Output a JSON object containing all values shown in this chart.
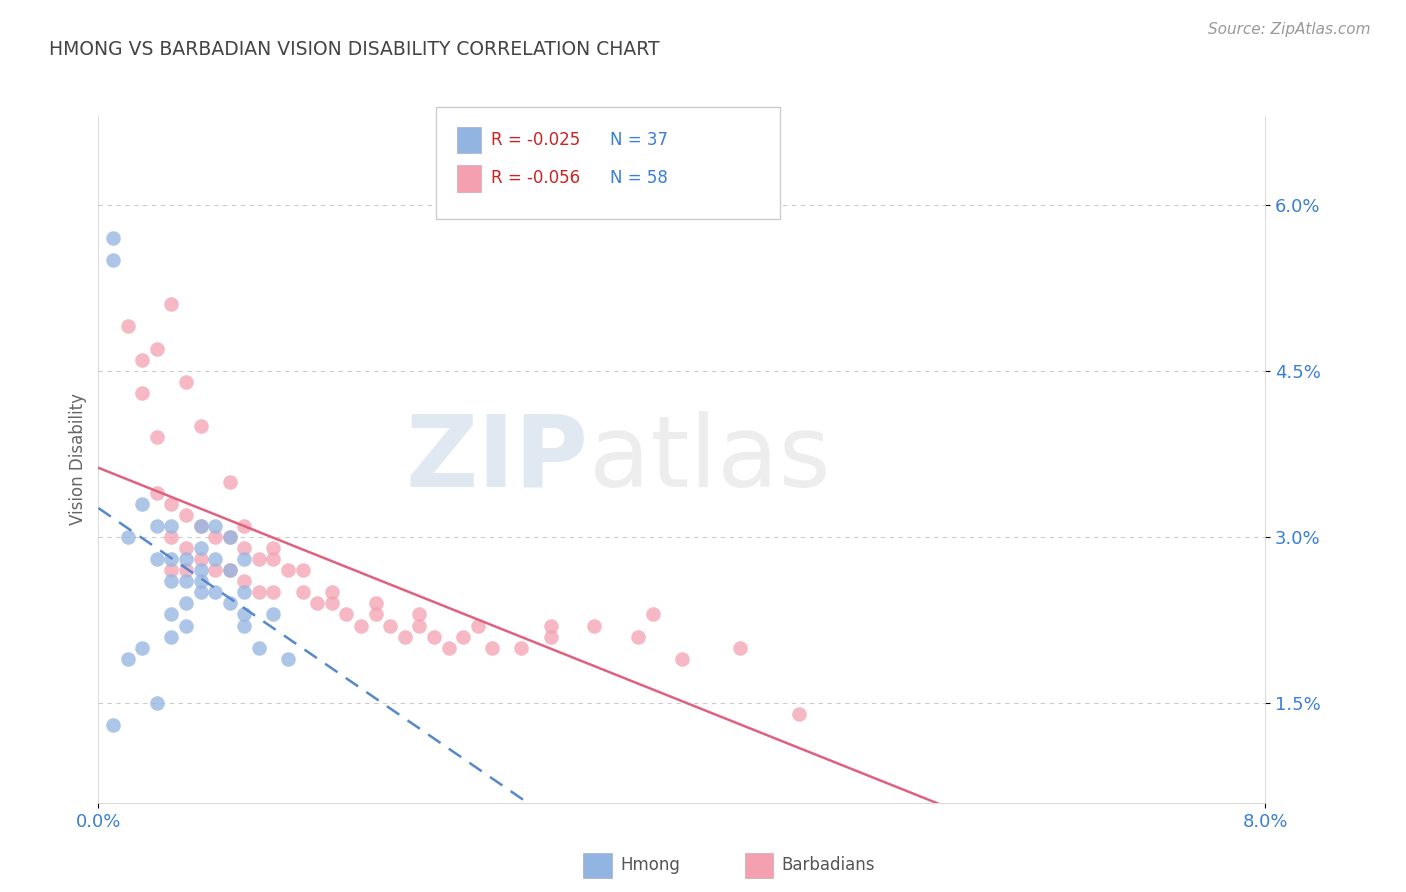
{
  "title": "HMONG VS BARBADIAN VISION DISABILITY CORRELATION CHART",
  "source": "Source: ZipAtlas.com",
  "ylabel": "Vision Disability",
  "ytick_labels": [
    "1.5%",
    "3.0%",
    "4.5%",
    "6.0%"
  ],
  "ytick_values": [
    0.015,
    0.03,
    0.045,
    0.06
  ],
  "xlim": [
    0.0,
    0.08
  ],
  "ylim": [
    0.006,
    0.068
  ],
  "legend_r_hmong": "R = -0.025",
  "legend_n_hmong": "N = 37",
  "legend_r_barb": "R = -0.056",
  "legend_n_barb": "N = 58",
  "legend_label_hmong": "Hmong",
  "legend_label_barb": "Barbadians",
  "hmong_color": "#92b4e0",
  "barb_color": "#f4a0b0",
  "hmong_line_color": "#5588cc",
  "barb_line_color": "#e06080",
  "hmong_x": [
    0.001,
    0.001,
    0.002,
    0.003,
    0.004,
    0.004,
    0.005,
    0.005,
    0.005,
    0.005,
    0.006,
    0.006,
    0.006,
    0.007,
    0.007,
    0.007,
    0.007,
    0.008,
    0.008,
    0.009,
    0.009,
    0.01,
    0.01,
    0.01,
    0.011,
    0.012,
    0.013,
    0.001,
    0.002,
    0.003,
    0.004,
    0.005,
    0.006,
    0.007,
    0.008,
    0.009,
    0.01
  ],
  "hmong_y": [
    0.057,
    0.055,
    0.03,
    0.033,
    0.031,
    0.028,
    0.028,
    0.026,
    0.023,
    0.031,
    0.028,
    0.026,
    0.024,
    0.027,
    0.031,
    0.029,
    0.026,
    0.031,
    0.028,
    0.03,
    0.027,
    0.028,
    0.025,
    0.022,
    0.02,
    0.023,
    0.019,
    0.013,
    0.019,
    0.02,
    0.015,
    0.021,
    0.022,
    0.025,
    0.025,
    0.024,
    0.023
  ],
  "barb_x": [
    0.002,
    0.003,
    0.003,
    0.004,
    0.004,
    0.005,
    0.005,
    0.005,
    0.006,
    0.006,
    0.006,
    0.007,
    0.007,
    0.008,
    0.008,
    0.009,
    0.009,
    0.01,
    0.01,
    0.011,
    0.011,
    0.012,
    0.012,
    0.013,
    0.014,
    0.015,
    0.016,
    0.017,
    0.018,
    0.019,
    0.02,
    0.021,
    0.022,
    0.023,
    0.024,
    0.025,
    0.027,
    0.029,
    0.031,
    0.034,
    0.037,
    0.04,
    0.044,
    0.048,
    0.004,
    0.005,
    0.006,
    0.007,
    0.009,
    0.01,
    0.012,
    0.014,
    0.016,
    0.019,
    0.022,
    0.026,
    0.031,
    0.038
  ],
  "barb_y": [
    0.049,
    0.046,
    0.043,
    0.039,
    0.034,
    0.033,
    0.03,
    0.027,
    0.032,
    0.029,
    0.027,
    0.031,
    0.028,
    0.03,
    0.027,
    0.03,
    0.027,
    0.029,
    0.026,
    0.028,
    0.025,
    0.028,
    0.025,
    0.027,
    0.025,
    0.024,
    0.024,
    0.023,
    0.022,
    0.023,
    0.022,
    0.021,
    0.022,
    0.021,
    0.02,
    0.021,
    0.02,
    0.02,
    0.021,
    0.022,
    0.021,
    0.019,
    0.02,
    0.014,
    0.047,
    0.051,
    0.044,
    0.04,
    0.035,
    0.031,
    0.029,
    0.027,
    0.025,
    0.024,
    0.023,
    0.022,
    0.022,
    0.023
  ]
}
